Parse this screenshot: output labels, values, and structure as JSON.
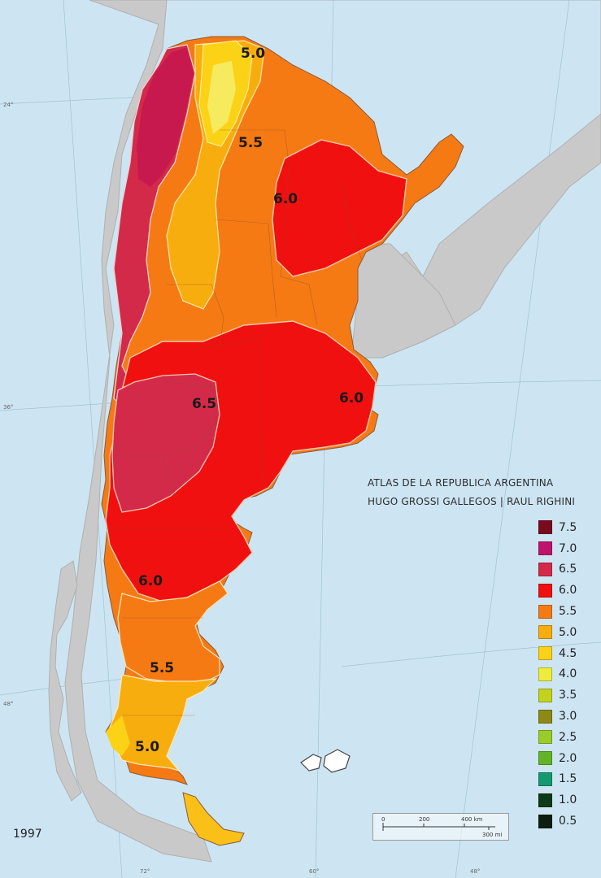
{
  "map": {
    "credits_line1": "ATLAS DE LA REPUBLICA ARGENTINA",
    "credits_line2": "HUGO GROSSI GALLEGOS | RAUL RIGHINI",
    "year": "1997",
    "zone_labels": [
      "5.0",
      "5.5",
      "6.0",
      "6.5",
      "6.0",
      "6.0",
      "5.5",
      "5.0"
    ],
    "legend": [
      {
        "label": "7.5",
        "color": "#7a0a1e"
      },
      {
        "label": "7.0",
        "color": "#c0136b"
      },
      {
        "label": "6.5",
        "color": "#d42a4a"
      },
      {
        "label": "6.0",
        "color": "#f01010"
      },
      {
        "label": "5.5",
        "color": "#f57a14"
      },
      {
        "label": "5.0",
        "color": "#f8ad0e"
      },
      {
        "label": "4.5",
        "color": "#fbd216"
      },
      {
        "label": "4.0",
        "color": "#eeec3a"
      },
      {
        "label": "3.5",
        "color": "#c4d21e"
      },
      {
        "label": "3.0",
        "color": "#8c8a14"
      },
      {
        "label": "2.5",
        "color": "#9acc28"
      },
      {
        "label": "2.0",
        "color": "#62b426"
      },
      {
        "label": "1.5",
        "color": "#149a6e"
      },
      {
        "label": "1.0",
        "color": "#0c3a16"
      },
      {
        "label": "0.5",
        "color": "#0b1e0f"
      }
    ],
    "scale": {
      "top_left": "0",
      "top_mid": "200",
      "top_right": "400 km",
      "bottom_right": "300 mi"
    },
    "grid_labels": {
      "lat24": "24°",
      "lat36": "36°",
      "lat48": "48°",
      "lon72": "72°",
      "lon60": "60°",
      "lon48": "48°"
    }
  }
}
